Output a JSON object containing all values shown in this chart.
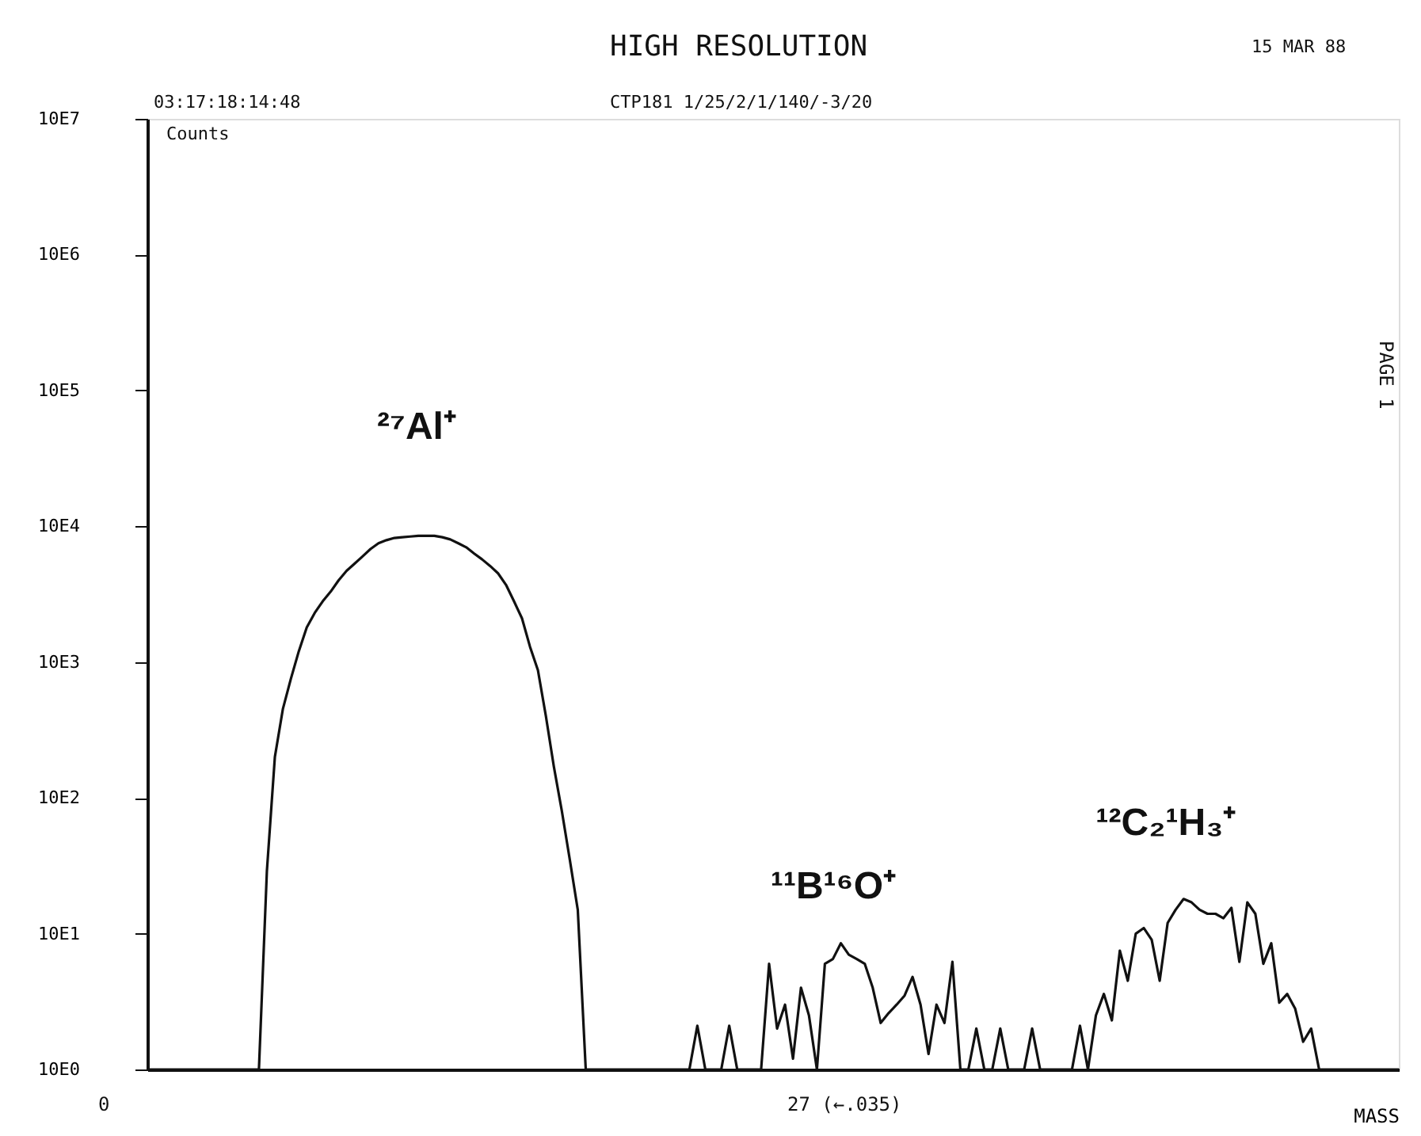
{
  "chart_data": {
    "type": "line",
    "title": "HIGH RESOLUTION",
    "xlabel": "MASS",
    "ylabel": "Counts",
    "annotations": [
      "15 MAR 88",
      "03:17:18:14:48",
      "CTP181 1/25/2/1/140/-3/20",
      "PAGE 1",
      "0",
      "27 (←.035)",
      "²⁷Al⁺",
      "¹¹B¹⁶O⁺",
      "¹²C₂¹H₃⁺"
    ],
    "categories": [
      null,
      null,
      null,
      null,
      null,
      null,
      null,
      null,
      null,
      null,
      null,
      null,
      null,
      null,
      null,
      null,
      null,
      null,
      null,
      null,
      null,
      null,
      null,
      null,
      null,
      null,
      null,
      null,
      null,
      null,
      null,
      null,
      null,
      null,
      null,
      null,
      null,
      null,
      null,
      null,
      null,
      null,
      null,
      null,
      null,
      null,
      null,
      null,
      null,
      null,
      null,
      null,
      null,
      null,
      null,
      null,
      null,
      null,
      null,
      null,
      null,
      null,
      null,
      null,
      null,
      null,
      null,
      null,
      null,
      null,
      null,
      null,
      null,
      null,
      null,
      null,
      null,
      null,
      null,
      null,
      null,
      null,
      null,
      null,
      null,
      null,
      null,
      null,
      null,
      null,
      null,
      null,
      null,
      null,
      null,
      null,
      null,
      null,
      null,
      null,
      null,
      null,
      null,
      null,
      null,
      null,
      null,
      null,
      null,
      null,
      null,
      null,
      null,
      null,
      null,
      null,
      null,
      null,
      null,
      null,
      null,
      null,
      null,
      null,
      null,
      null,
      null,
      null,
      null,
      null,
      null,
      null,
      null,
      null,
      null,
      null,
      null,
      null,
      null,
      null,
      null,
      null,
      null,
      null,
      null,
      null,
      null,
      null,
      null,
      null,
      null,
      null,
      null,
      null,
      null,
      null,
      null,
      null
    ],
    "values": [
      10,
      10,
      10,
      10,
      10,
      10,
      10,
      10,
      10,
      10,
      10,
      10,
      10,
      10,
      10,
      290,
      2000,
      4500,
      7500,
      12000,
      18000,
      23000,
      28000,
      33000,
      40000,
      47000,
      53000,
      60000,
      68000,
      75000,
      79000,
      82000,
      83000,
      84000,
      85000,
      85000,
      85000,
      83000,
      80000,
      75000,
      70000,
      63000,
      57000,
      51000,
      45000,
      37000,
      28000,
      21000,
      13000,
      8700,
      4000,
      1700,
      800,
      350,
      150,
      10,
      10,
      10,
      10,
      10,
      10,
      10,
      10,
      10,
      10,
      10,
      10,
      10,
      10,
      21,
      10,
      10,
      10,
      21,
      10,
      10,
      10,
      10,
      60,
      20,
      30,
      12,
      40,
      25,
      10,
      60,
      65,
      85,
      70,
      65,
      60,
      40,
      22,
      26,
      30,
      35,
      48,
      30,
      13,
      30,
      22,
      62,
      10,
      10,
      20,
      10,
      10,
      20,
      10,
      10,
      10,
      20,
      10,
      10,
      10,
      10,
      10,
      21,
      10,
      25,
      36,
      23,
      75,
      45,
      100,
      110,
      90,
      45,
      120,
      150,
      180,
      170,
      150,
      140,
      140,
      130,
      155,
      62,
      170,
      140,
      60,
      85,
      31,
      36,
      28,
      16,
      20,
      10,
      10,
      10,
      10,
      10,
      10,
      10,
      10,
      10,
      10,
      10
    ],
    "color": "#111111",
    "log": true,
    "ylim": [
      10,
      100000000
    ],
    "yticks": [
      {
        "value": 10,
        "label": "10E0"
      },
      {
        "value": 100,
        "label": "10E1"
      },
      {
        "value": 1000,
        "label": "10E2"
      },
      {
        "value": 10000,
        "label": "10E3"
      },
      {
        "value": 100000,
        "label": "10E4"
      },
      {
        "value": 1000000,
        "label": "10E5"
      },
      {
        "value": 10000000,
        "label": "10E6"
      },
      {
        "value": 100000000,
        "label": "10E7"
      }
    ],
    "tick_labels": "y",
    "grid": false
  }
}
